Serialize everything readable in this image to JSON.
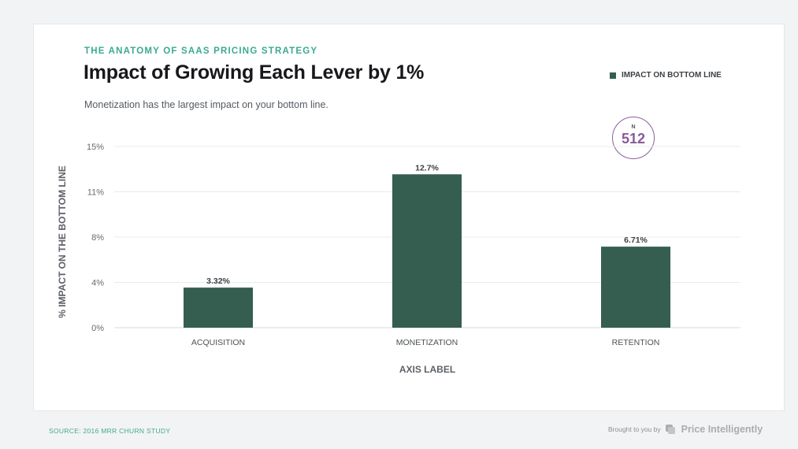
{
  "header": {
    "eyebrow": "THE ANATOMY OF SAAS PRICING STRATEGY",
    "title": "Impact of Growing Each Lever by 1%",
    "subtitle": "Monetization has the largest impact on your bottom line."
  },
  "legend": {
    "label": "IMPACT ON BOTTOM LINE",
    "color": "#355e50"
  },
  "sample": {
    "label": "N",
    "value": "512"
  },
  "chart_data": {
    "type": "bar",
    "categories": [
      "ACQUISITION",
      "MONETIZATION",
      "RETENTION"
    ],
    "series": [
      {
        "name": "IMPACT ON BOTTOM LINE",
        "values": [
          3.32,
          12.7,
          6.71
        ],
        "labels": [
          "3.32%",
          "12.7%",
          "6.71%"
        ]
      }
    ],
    "yticks": [
      0,
      3.75,
      7.5,
      11.25,
      15
    ],
    "ytick_labels": [
      "0%",
      "4%",
      "8%",
      "11%",
      "15%"
    ],
    "ylim": [
      0,
      15
    ],
    "xlabel": "AXIS LABEL",
    "ylabel": "% IMPACT ON THE BOTTOM LINE",
    "grid": true,
    "legend_position": "top-right",
    "bar_color": "#355e50"
  },
  "footer": {
    "source": "SOURCE: 2016 MRR CHURN STUDY",
    "brought_by": "Brought to you by",
    "brand": "Price Intelligently"
  }
}
